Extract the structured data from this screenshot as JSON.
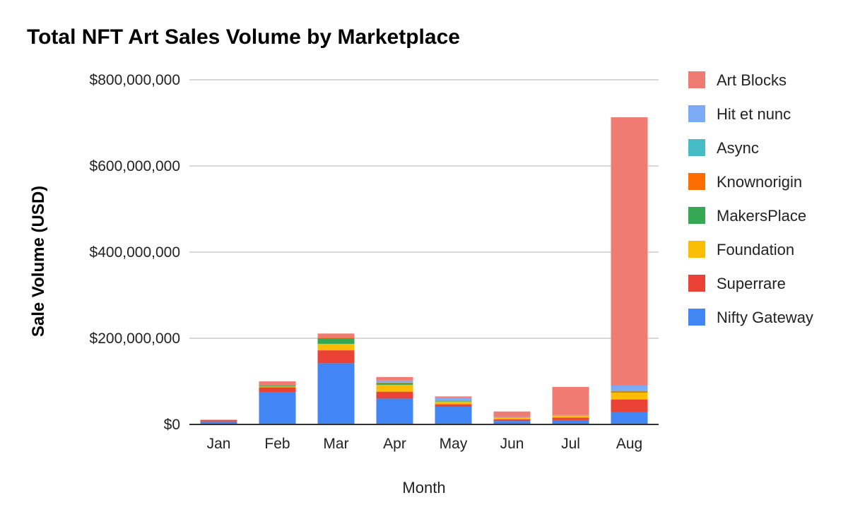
{
  "chart_data": {
    "type": "bar",
    "stacked": true,
    "title": "Total NFT Art Sales Volume by Marketplace",
    "xlabel": "Month",
    "ylabel": "Sale Volume (USD)",
    "ylim": [
      0,
      800000000
    ],
    "yticks": [
      0,
      200000000,
      400000000,
      600000000,
      800000000
    ],
    "ytick_labels": [
      "$0",
      "$200,000,000",
      "$400,000,000",
      "$600,000,000",
      "$800,000,000"
    ],
    "grid": true,
    "legend_position": "right",
    "categories": [
      "Jan",
      "Feb",
      "Mar",
      "Apr",
      "May",
      "Jun",
      "Jul",
      "Aug"
    ],
    "series": [
      {
        "name": "Nifty Gateway",
        "color": "#4285f4",
        "values": [
          7000000,
          74000000,
          142000000,
          60000000,
          41000000,
          8000000,
          10000000,
          28000000
        ]
      },
      {
        "name": "Superrare",
        "color": "#ea4335",
        "values": [
          3000000,
          12000000,
          30000000,
          16000000,
          6000000,
          4000000,
          6000000,
          30000000
        ]
      },
      {
        "name": "Foundation",
        "color": "#fbbc04",
        "values": [
          0,
          2000000,
          15000000,
          16000000,
          6000000,
          3000000,
          4000000,
          16000000
        ]
      },
      {
        "name": "MakersPlace",
        "color": "#34a853",
        "values": [
          0,
          2000000,
          13000000,
          4000000,
          1000000,
          0,
          0,
          2000000
        ]
      },
      {
        "name": "Knownorigin",
        "color": "#ff6d01",
        "values": [
          0,
          0,
          1000000,
          1000000,
          0,
          0,
          1000000,
          1000000
        ]
      },
      {
        "name": "Async",
        "color": "#46bdc6",
        "values": [
          0,
          0,
          0,
          1000000,
          2000000,
          1000000,
          0,
          2000000
        ]
      },
      {
        "name": "Hit et nunc",
        "color": "#7baaf7",
        "values": [
          0,
          0,
          0,
          4000000,
          5000000,
          1000000,
          1000000,
          12000000
        ]
      },
      {
        "name": "Art Blocks",
        "color": "#f07b72",
        "values": [
          1000000,
          10000000,
          10000000,
          8000000,
          4000000,
          13000000,
          65000000,
          622000000
        ]
      }
    ]
  }
}
